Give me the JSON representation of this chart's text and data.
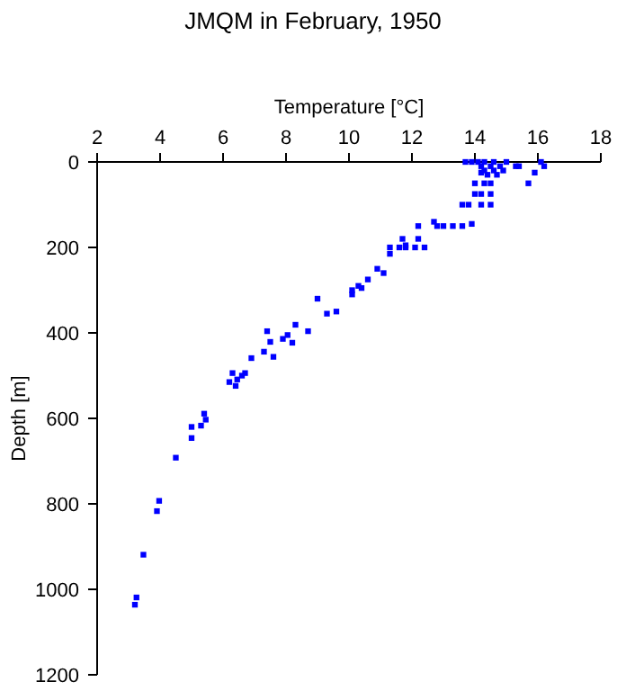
{
  "chart_data": {
    "type": "scatter",
    "title": "JMQM in February, 1950",
    "xlabel": "Temperature [°C]",
    "ylabel": "Depth [m]",
    "xlim": [
      2,
      18
    ],
    "xticks": [
      2,
      4,
      6,
      8,
      10,
      12,
      14,
      16,
      18
    ],
    "ylim": [
      1200,
      0
    ],
    "yticks": [
      0,
      200,
      400,
      600,
      800,
      1000,
      1200
    ],
    "grid": false,
    "marker": "square",
    "series": [
      {
        "color": "#0000ff",
        "x": [
          13.7,
          13.9,
          14.1,
          14.3,
          14.6,
          15.0,
          16.1,
          14.2,
          14.5,
          14.8,
          15.3,
          15.4,
          16.2,
          14.3,
          14.6,
          14.9,
          14.2,
          15.9,
          14.4,
          14.7,
          14.0,
          14.3,
          14.5,
          15.7,
          14.0,
          14.2,
          14.5,
          13.6,
          13.8,
          14.2,
          14.5,
          12.7,
          12.8,
          13.0,
          13.3,
          13.6,
          12.2,
          13.9,
          11.7,
          12.2,
          11.3,
          11.6,
          11.8,
          12.1,
          12.4,
          11.3,
          11.8,
          10.9,
          11.1,
          10.6,
          10.3,
          10.4,
          10.1,
          10.1,
          9.0,
          9.6,
          9.3,
          7.4,
          7.5,
          7.6,
          7.3,
          6.9,
          7.9,
          8.05,
          8.2,
          8.3,
          8.7,
          6.3,
          6.2,
          6.4,
          6.45,
          6.6,
          6.7,
          5.4,
          5.45,
          5.3,
          5.0,
          5.0,
          4.5,
          3.97,
          3.9,
          3.47,
          3.25,
          3.2
        ],
        "values": [
          0,
          0,
          0,
          0,
          0,
          0,
          0,
          10,
          10,
          10,
          10,
          10,
          10,
          20,
          20,
          20,
          25,
          25,
          30,
          30,
          50,
          50,
          50,
          50,
          75,
          75,
          75,
          100,
          100,
          100,
          100,
          140,
          150,
          150,
          150,
          150,
          150,
          145,
          180,
          180,
          200,
          200,
          200,
          200,
          200,
          215,
          195,
          250,
          260,
          275,
          290,
          295,
          300,
          310,
          320,
          350,
          355,
          396,
          421,
          456,
          444,
          459,
          414,
          405,
          423,
          381,
          396,
          494,
          515,
          524,
          509,
          500,
          494,
          589,
          603,
          617,
          620,
          646,
          692,
          793,
          817,
          919,
          1019,
          1036
        ]
      }
    ]
  }
}
